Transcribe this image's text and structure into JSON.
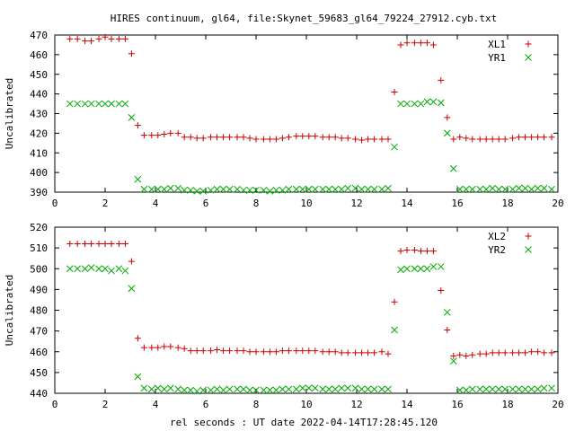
{
  "title": "HIRES continuum, gl64, file:Skynet_59683_gl64_79224_27912.cyb.txt",
  "xlabel": "rel seconds : UT date 2022-04-14T17:28:45.120",
  "chart_data": [
    {
      "type": "scatter",
      "ylabel": "Uncalibrated",
      "xlim": [
        0,
        20
      ],
      "ylim": [
        390,
        470
      ],
      "xticks": [
        0,
        2,
        4,
        6,
        8,
        10,
        12,
        14,
        16,
        18,
        20
      ],
      "yticks": [
        390,
        400,
        410,
        420,
        430,
        440,
        450,
        460,
        470
      ],
      "legend_position": "top-right",
      "series": [
        {
          "name": "XL1",
          "marker": "plus",
          "color": "#cc0000",
          "x": [
            0.6,
            0.9,
            1.2,
            1.45,
            1.75,
            2.0,
            2.25,
            2.55,
            2.8,
            3.05,
            3.3,
            3.55,
            3.85,
            4.1,
            4.35,
            4.6,
            4.9,
            5.15,
            5.4,
            5.65,
            5.9,
            6.2,
            6.45,
            6.7,
            6.95,
            7.25,
            7.5,
            7.75,
            8.0,
            8.3,
            8.55,
            8.8,
            9.05,
            9.3,
            9.6,
            9.85,
            10.1,
            10.35,
            10.65,
            10.9,
            11.15,
            11.4,
            11.65,
            11.95,
            12.2,
            12.45,
            12.7,
            13.0,
            13.25,
            13.5,
            13.75,
            14.0,
            14.3,
            14.55,
            14.8,
            15.05,
            15.35,
            15.6,
            15.85,
            16.1,
            16.35,
            16.6,
            16.9,
            17.15,
            17.4,
            17.65,
            17.9,
            18.2,
            18.45,
            18.7,
            18.95,
            19.2,
            19.45,
            19.75
          ],
          "y": [
            468,
            468,
            467,
            467,
            468,
            469,
            468,
            468,
            468,
            460.5,
            424,
            419,
            419,
            419,
            419.5,
            420,
            420,
            418,
            418,
            417.5,
            417.5,
            418,
            418,
            418,
            418,
            418,
            418,
            417.5,
            417,
            417,
            417,
            417,
            417.5,
            418,
            418.5,
            418.5,
            418.5,
            418.5,
            418,
            418,
            418,
            417.5,
            417.5,
            417,
            416.5,
            417,
            417,
            417,
            417,
            441,
            465,
            466,
            466,
            466,
            466,
            465,
            447,
            428,
            417,
            418,
            417.5,
            417,
            417,
            417,
            417,
            417,
            417,
            417.5,
            418,
            418,
            418,
            418,
            418,
            418
          ]
        },
        {
          "name": "YR1",
          "marker": "cross",
          "color": "#00aa00",
          "x": [
            0.6,
            0.9,
            1.2,
            1.45,
            1.75,
            2.0,
            2.25,
            2.55,
            2.8,
            3.05,
            3.3,
            3.55,
            3.85,
            4.1,
            4.35,
            4.6,
            4.9,
            5.15,
            5.4,
            5.65,
            5.9,
            6.2,
            6.45,
            6.7,
            6.95,
            7.25,
            7.5,
            7.75,
            8.0,
            8.3,
            8.55,
            8.8,
            9.05,
            9.3,
            9.6,
            9.85,
            10.1,
            10.35,
            10.65,
            10.9,
            11.15,
            11.4,
            11.65,
            11.95,
            12.2,
            12.45,
            12.7,
            13.0,
            13.25,
            13.5,
            13.75,
            14.0,
            14.3,
            14.55,
            14.8,
            15.05,
            15.35,
            15.6,
            15.85,
            16.1,
            16.35,
            16.6,
            16.9,
            17.15,
            17.4,
            17.65,
            17.9,
            18.2,
            18.45,
            18.7,
            18.95,
            19.2,
            19.45,
            19.75
          ],
          "y": [
            435,
            435,
            435,
            435,
            435,
            435,
            435,
            435,
            435,
            428,
            396.5,
            391.5,
            391.5,
            391.5,
            391.5,
            392,
            392,
            391,
            391,
            390.5,
            390.5,
            391,
            391.5,
            391.5,
            391.5,
            391.5,
            391,
            391,
            391,
            391,
            390.5,
            391,
            391,
            391.5,
            391.5,
            391.5,
            391.5,
            391.5,
            391.5,
            391.5,
            391.5,
            391.5,
            392,
            392,
            391.5,
            391.5,
            391.5,
            391.5,
            392,
            413,
            435,
            435,
            435,
            435,
            436,
            436,
            435.5,
            420,
            402,
            391.5,
            391.5,
            391.5,
            391.5,
            391.5,
            392,
            391.5,
            391.5,
            391.5,
            392,
            392,
            391.5,
            392,
            392,
            391.5
          ]
        }
      ]
    },
    {
      "type": "scatter",
      "ylabel": "Uncalibrated",
      "xlim": [
        0,
        20
      ],
      "ylim": [
        440,
        520
      ],
      "xticks": [
        0,
        2,
        4,
        6,
        8,
        10,
        12,
        14,
        16,
        18,
        20
      ],
      "yticks": [
        440,
        450,
        460,
        470,
        480,
        490,
        500,
        510,
        520
      ],
      "legend_position": "top-right",
      "series": [
        {
          "name": "XL2",
          "marker": "plus",
          "color": "#cc0000",
          "x": [
            0.6,
            0.9,
            1.2,
            1.45,
            1.75,
            2.0,
            2.25,
            2.55,
            2.8,
            3.05,
            3.3,
            3.55,
            3.85,
            4.1,
            4.35,
            4.6,
            4.9,
            5.15,
            5.4,
            5.65,
            5.9,
            6.2,
            6.45,
            6.7,
            6.95,
            7.25,
            7.5,
            7.75,
            8.0,
            8.3,
            8.55,
            8.8,
            9.05,
            9.3,
            9.6,
            9.85,
            10.1,
            10.35,
            10.65,
            10.9,
            11.15,
            11.4,
            11.65,
            11.95,
            12.2,
            12.45,
            12.7,
            13.0,
            13.25,
            13.5,
            13.75,
            14.0,
            14.3,
            14.55,
            14.8,
            15.05,
            15.35,
            15.6,
            15.85,
            16.1,
            16.35,
            16.6,
            16.9,
            17.15,
            17.4,
            17.65,
            17.9,
            18.2,
            18.45,
            18.7,
            18.95,
            19.2,
            19.45,
            19.75
          ],
          "y": [
            512,
            512,
            512,
            512,
            512,
            512,
            512,
            512,
            512,
            503.5,
            466.5,
            462,
            462,
            462,
            462.5,
            462.5,
            462,
            461.5,
            460.5,
            460.5,
            460.5,
            460.5,
            461,
            460.5,
            460.5,
            460.5,
            460.5,
            460,
            460,
            460,
            460,
            460,
            460.5,
            460.5,
            460.5,
            460.5,
            460.5,
            460.5,
            460,
            460,
            460,
            459.5,
            459.5,
            459.5,
            459.5,
            459.5,
            459.5,
            460,
            459,
            484,
            508.5,
            509,
            509,
            508.5,
            508.5,
            508.5,
            489.5,
            470.5,
            458,
            458.5,
            458,
            458.5,
            459,
            459,
            459.5,
            459.5,
            459.5,
            459.5,
            459.5,
            459.5,
            460,
            460,
            459.5,
            459.5
          ]
        },
        {
          "name": "YR2",
          "marker": "cross",
          "color": "#00aa00",
          "x": [
            0.6,
            0.9,
            1.2,
            1.45,
            1.75,
            2.0,
            2.25,
            2.55,
            2.8,
            3.05,
            3.3,
            3.55,
            3.85,
            4.1,
            4.35,
            4.6,
            4.9,
            5.15,
            5.4,
            5.65,
            5.9,
            6.2,
            6.45,
            6.7,
            6.95,
            7.25,
            7.5,
            7.75,
            8.0,
            8.3,
            8.55,
            8.8,
            9.05,
            9.3,
            9.6,
            9.85,
            10.1,
            10.35,
            10.65,
            10.9,
            11.15,
            11.4,
            11.65,
            11.95,
            12.2,
            12.45,
            12.7,
            13.0,
            13.25,
            13.5,
            13.75,
            14.0,
            14.3,
            14.55,
            14.8,
            15.05,
            15.35,
            15.6,
            15.85,
            16.1,
            16.35,
            16.6,
            16.9,
            17.15,
            17.4,
            17.65,
            17.9,
            18.2,
            18.45,
            18.7,
            18.95,
            19.2,
            19.45,
            19.75
          ],
          "y": [
            500,
            500,
            500,
            500.5,
            500,
            500,
            499,
            500,
            499,
            490.5,
            448,
            442.5,
            442,
            442.5,
            442,
            442.5,
            442,
            441.5,
            441.5,
            441,
            441.5,
            441.5,
            442,
            441.5,
            442,
            442,
            442,
            441.5,
            441.5,
            441.5,
            441.5,
            441.5,
            442,
            442,
            442,
            442.5,
            442.5,
            442.5,
            442,
            442,
            442,
            442.5,
            442.5,
            442.5,
            442,
            442,
            442,
            442,
            442,
            470.5,
            499.5,
            500,
            500,
            500,
            500,
            501,
            501,
            479,
            455.5,
            441.5,
            441.5,
            442,
            442,
            442,
            442,
            442,
            442,
            442,
            442,
            442,
            442,
            442,
            442.5,
            442.5
          ]
        }
      ]
    }
  ]
}
